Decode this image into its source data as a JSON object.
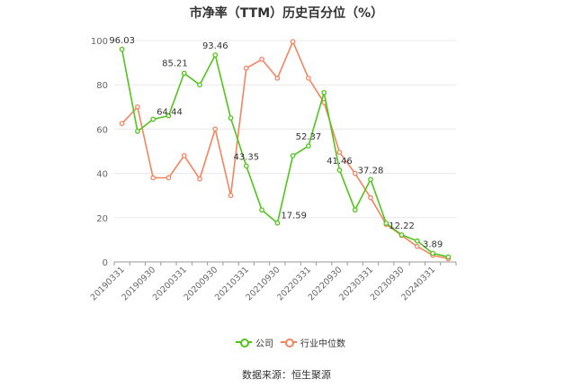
{
  "title": "市净率（TTM）历史百分位（%）",
  "source": "数据来源：恒生聚源",
  "chart_data": {
    "type": "line",
    "title": "市净率（TTM）历史百分位（%）",
    "x": [
      "20190331",
      "20190630",
      "20190930",
      "20191231",
      "20200331",
      "20200630",
      "20200930",
      "20201231",
      "20210331",
      "20210630",
      "20210930",
      "20211231",
      "20220331",
      "20220630",
      "20220930",
      "20221231",
      "20230331",
      "20230630",
      "20230930",
      "20231231",
      "20240331",
      "20240630"
    ],
    "x_tick_labels": [
      "20190331",
      "20190930",
      "20200331",
      "20200930",
      "20210331",
      "20210930",
      "20220331",
      "20220930",
      "20230331",
      "20230930",
      "20240331"
    ],
    "ylim": [
      0,
      100
    ],
    "y_ticks": [
      0,
      20,
      40,
      60,
      80,
      100
    ],
    "grid": true,
    "legend_position": "bottom",
    "series": [
      {
        "name": "公司",
        "color": "#52c41a",
        "values": [
          96.03,
          59,
          64.44,
          66,
          85.21,
          80,
          93.46,
          65,
          43.35,
          23.5,
          17.59,
          48,
          52.37,
          76.5,
          41.46,
          23.5,
          37.28,
          17.5,
          12.22,
          9.5,
          3.89,
          2.3
        ],
        "labels": [
          {
            "index": 0,
            "text": "96.03",
            "pos": "top"
          },
          {
            "index": 2,
            "text": "64.44",
            "pos": "top-right"
          },
          {
            "index": 4,
            "text": "85.21",
            "pos": "top-left"
          },
          {
            "index": 6,
            "text": "93.46",
            "pos": "top"
          },
          {
            "index": 8,
            "text": "43.35",
            "pos": "top"
          },
          {
            "index": 10,
            "text": "17.59",
            "pos": "top-right"
          },
          {
            "index": 12,
            "text": "52.37",
            "pos": "top"
          },
          {
            "index": 14,
            "text": "41.46",
            "pos": "top"
          },
          {
            "index": 16,
            "text": "37.28",
            "pos": "top"
          },
          {
            "index": 18,
            "text": "12.22",
            "pos": "top"
          },
          {
            "index": 20,
            "text": "3.89",
            "pos": "top"
          }
        ]
      },
      {
        "name": "行业中位数",
        "color": "#f4845f",
        "values": [
          62.5,
          70,
          38,
          38,
          48,
          37.5,
          60,
          30,
          87.5,
          91.5,
          83,
          99.5,
          83,
          72,
          49.5,
          40,
          29,
          17,
          12,
          7,
          3,
          1.5
        ]
      }
    ]
  }
}
